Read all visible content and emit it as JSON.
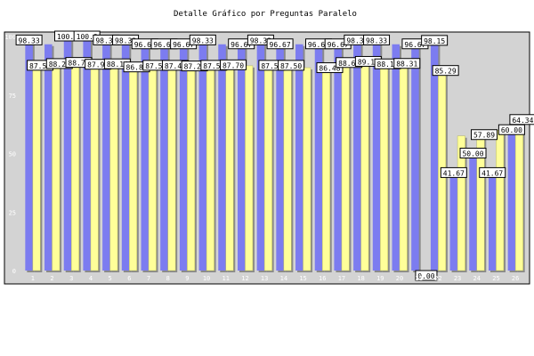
{
  "chart_data": {
    "type": "bar",
    "title": "Detalle Gráfico por Preguntas Paralelo",
    "categories": [
      "1",
      "2",
      "3",
      "4",
      "5",
      "6",
      "7",
      "8",
      "9",
      "10",
      "11",
      "12",
      "13",
      "14",
      "15",
      "16",
      "17",
      "18",
      "19",
      "20",
      "21",
      "22",
      "23",
      "24",
      "25",
      "26"
    ],
    "ylim": [
      0,
      100
    ],
    "yticks": [
      "0",
      "25",
      "50",
      "75",
      "100"
    ],
    "grid": false,
    "legend": "none",
    "series": [
      {
        "color": "#7c7cf0",
        "values": [
          98.33,
          96.67,
          100.0,
          100.0,
          98.33,
          98.33,
          96.67,
          96.67,
          96.67,
          98.33,
          96.67,
          96.67,
          98.33,
          96.67,
          96.67,
          96.67,
          96.67,
          98.33,
          98.33,
          96.67,
          96.67,
          98.15,
          41.67,
          50.0,
          41.67,
          60.0
        ],
        "labels": [
          "98.33",
          "",
          "100.0",
          "100.0",
          "98.33",
          "98.33",
          "96.67",
          "96.67",
          "96.67",
          "98.33",
          "",
          "96.67",
          "98.33",
          "96.67",
          "",
          "96.67",
          "96.67",
          "98.33",
          "98.33",
          "",
          "96.67",
          "98.15",
          "41.67",
          "50.00",
          "41.67",
          "60.00"
        ]
      },
      {
        "color": "#ffff99",
        "values": [
          87.5,
          88.24,
          88.73,
          87.95,
          88.14,
          86.81,
          87.5,
          87.49,
          87.22,
          87.5,
          87.7,
          87.5,
          87.51,
          87.5,
          86.67,
          86.48,
          88.68,
          89.18,
          88.12,
          88.31,
          0.0,
          85.29,
          57.5,
          57.89,
          60.0,
          64.34
        ],
        "labels": [
          "87.50",
          "88.24",
          "88.73",
          "87.95",
          "88.14",
          "86.81",
          "87.50",
          "87.49",
          "87.22",
          "87.50",
          "87.70",
          "",
          "87.51",
          "87.50",
          "",
          "86.48",
          "88.68",
          "89.18",
          "88.12",
          "88.31",
          "0.00",
          "85.29",
          "",
          "57.89",
          "",
          "64.34"
        ]
      }
    ]
  }
}
